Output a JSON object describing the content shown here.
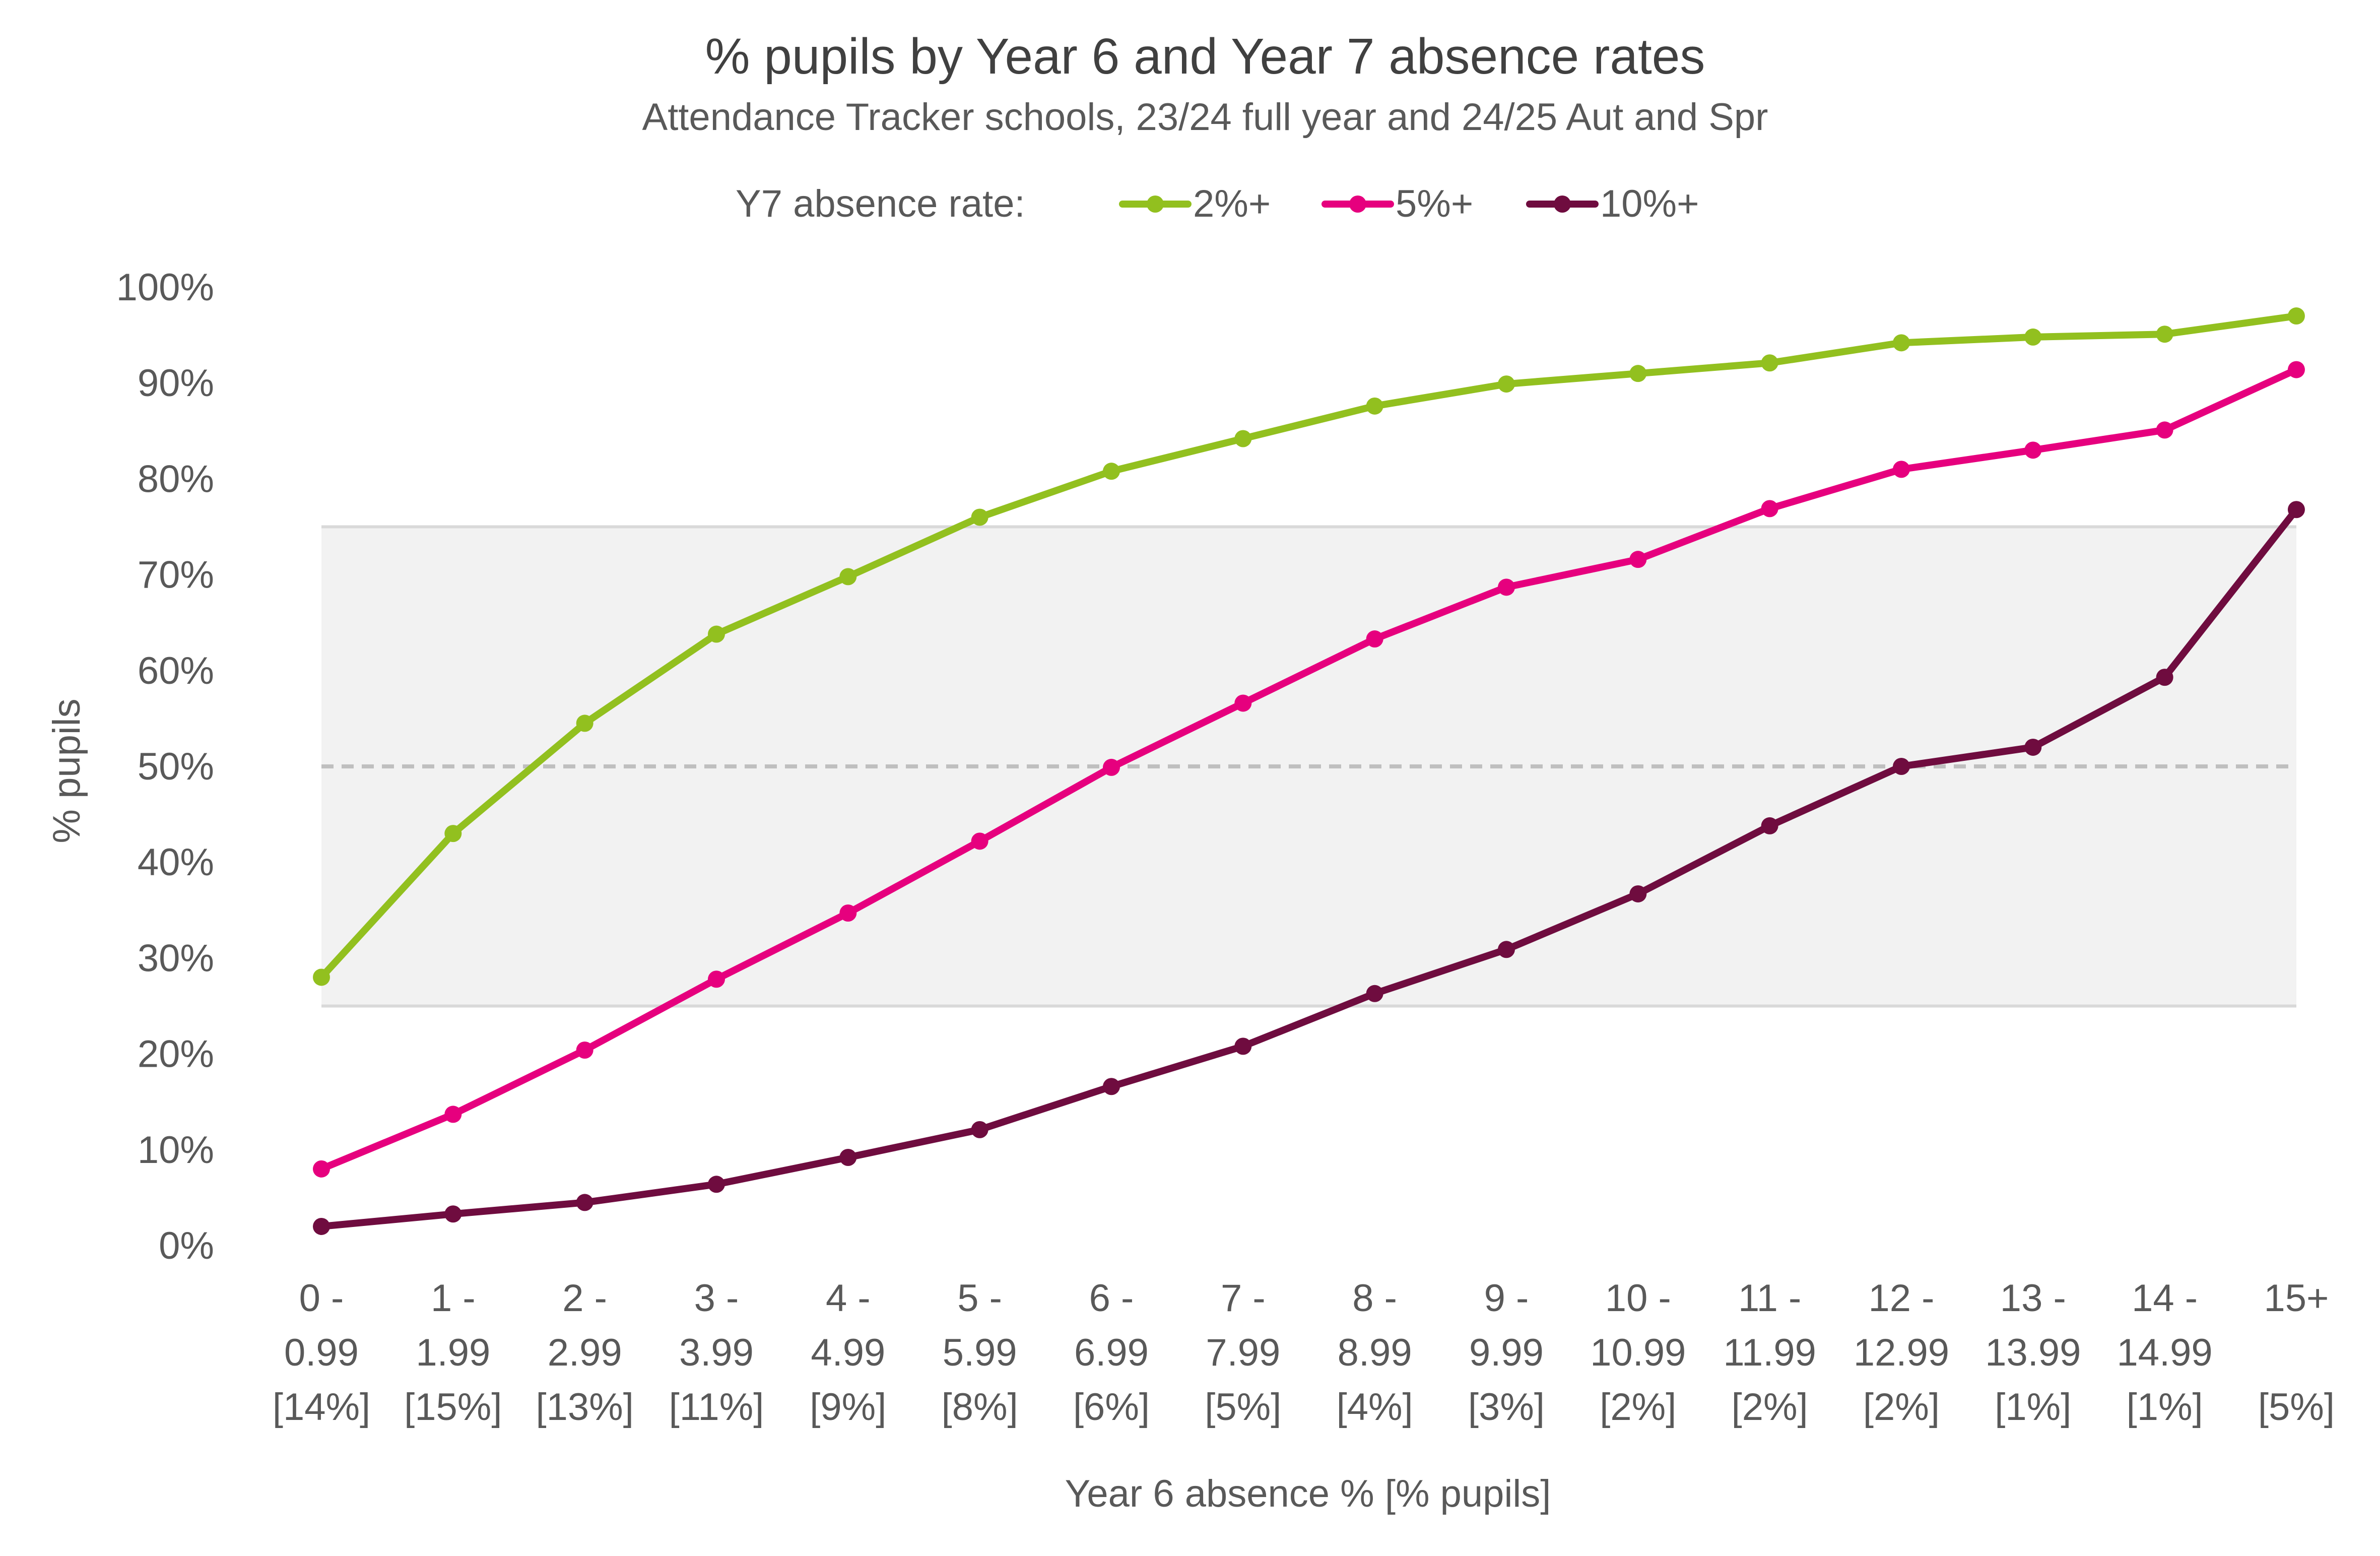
{
  "chart_data": {
    "type": "line",
    "title": "% pupils by Year 6 and Year 7 absence rates",
    "subtitle": "Attendance Tracker schools, 23/24 full year and 24/25 Aut and Spr",
    "legend_title": "Y7 absence rate:",
    "legend_position": "top-center",
    "xlabel": "Year 6 absence % [% pupils]",
    "ylabel": "% pupils",
    "ylim": [
      0,
      100
    ],
    "y_ticks": [
      "0%",
      "10%",
      "20%",
      "30%",
      "40%",
      "50%",
      "60%",
      "70%",
      "80%",
      "90%",
      "100%"
    ],
    "y_tick_values": [
      0,
      10,
      20,
      30,
      40,
      50,
      60,
      70,
      80,
      90,
      100
    ],
    "grid": false,
    "shaded_band": [
      25,
      75
    ],
    "reference_line": 50,
    "categories": [
      [
        "0 -",
        "0.99",
        "[14%]"
      ],
      [
        "1 -",
        "1.99",
        "[15%]"
      ],
      [
        "2 -",
        "2.99",
        "[13%]"
      ],
      [
        "3 -",
        "3.99",
        "[11%]"
      ],
      [
        "4 -",
        "4.99",
        "[9%]"
      ],
      [
        "5 -",
        "5.99",
        "[8%]"
      ],
      [
        "6 -",
        "6.99",
        "[6%]"
      ],
      [
        "7 -",
        "7.99",
        "[5%]"
      ],
      [
        "8 -",
        "8.99",
        "[4%]"
      ],
      [
        "9 -",
        "9.99",
        "[3%]"
      ],
      [
        "10 -",
        "10.99",
        "[2%]"
      ],
      [
        "11 -",
        "11.99",
        "[2%]"
      ],
      [
        "12 -",
        "12.99",
        "[2%]"
      ],
      [
        "13 -",
        "13.99",
        "[1%]"
      ],
      [
        "14 -",
        "14.99",
        "[1%]"
      ],
      [
        "15+",
        "",
        "[5%]"
      ]
    ],
    "series": [
      {
        "name": "2%+",
        "color": "#92C01F",
        "values": [
          28.0,
          43.0,
          54.5,
          63.8,
          69.8,
          76.0,
          80.8,
          84.2,
          87.6,
          89.9,
          91.0,
          92.1,
          94.2,
          94.8,
          95.1,
          97.0
        ]
      },
      {
        "name": "5%+",
        "color": "#E6007E",
        "values": [
          8.0,
          13.7,
          20.4,
          27.8,
          34.7,
          42.2,
          49.9,
          56.6,
          63.3,
          68.7,
          71.6,
          76.9,
          81.0,
          83.0,
          85.1,
          91.4
        ]
      },
      {
        "name": "10%+",
        "color": "#6F0C3F",
        "values": [
          2.0,
          3.3,
          4.5,
          6.4,
          9.2,
          12.1,
          16.6,
          20.8,
          26.3,
          30.9,
          36.7,
          43.8,
          50.0,
          52.0,
          59.3,
          76.8
        ]
      }
    ],
    "band_color": "#F2F2F2",
    "band_edge_color": "#D9D9D9",
    "reference_line_color": "#BFBFBF"
  }
}
